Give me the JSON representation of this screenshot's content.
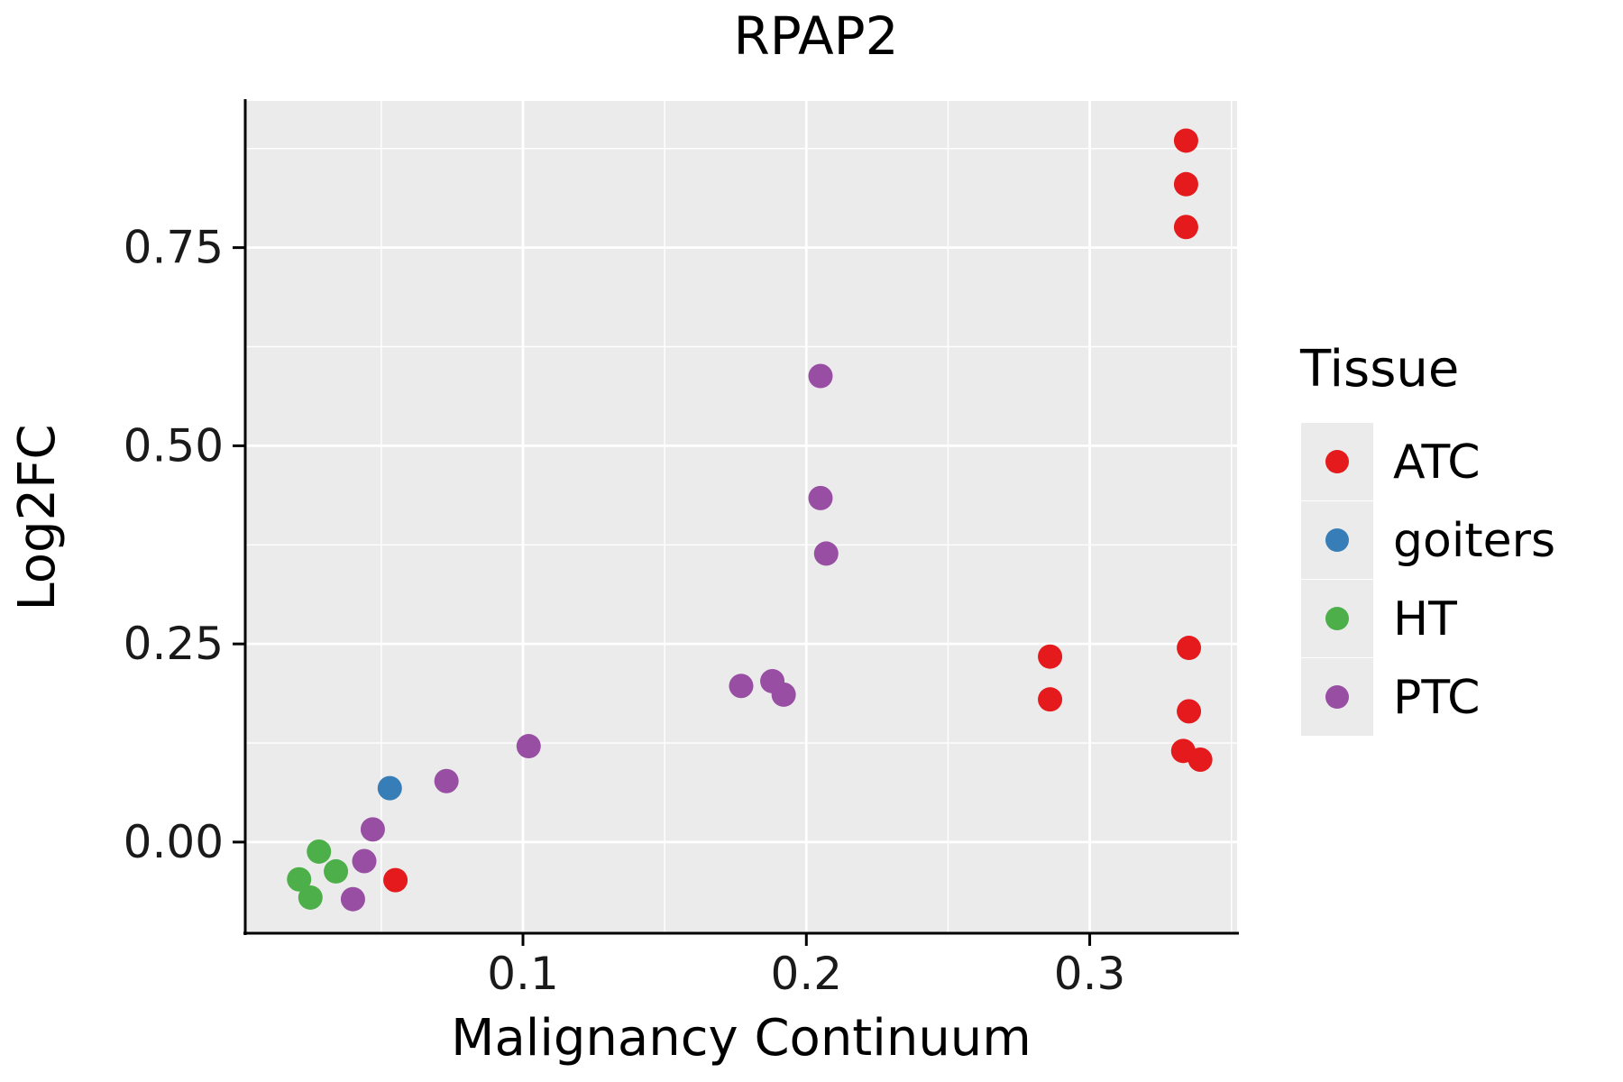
{
  "title": "RPAP2",
  "legend": {
    "title": "Tissue",
    "items": [
      "ATC",
      "goiters",
      "HT",
      "PTC"
    ]
  },
  "chart_data": {
    "type": "scatter",
    "title": "RPAP2",
    "xlabel": "Malignancy Continuum",
    "ylabel": "Log2FC",
    "xlim": [
      0.002,
      0.352
    ],
    "ylim": [
      -0.115,
      0.935
    ],
    "grid": true,
    "legend_position": "right",
    "panel_background": "#EBEBEB",
    "gridline_color": "#FFFFFF",
    "axis_color": "#000000",
    "x_ticks": {
      "values": [
        0.1,
        0.2,
        0.3
      ],
      "labels": [
        "0.1",
        "0.2",
        "0.3"
      ]
    },
    "y_ticks": {
      "values": [
        0.0,
        0.25,
        0.5,
        0.75
      ],
      "labels": [
        "0.00",
        "0.25",
        "0.50",
        "0.75"
      ]
    },
    "x_minor": [
      0.05,
      0.15,
      0.25,
      0.35
    ],
    "y_minor": [
      0.125,
      0.375,
      0.625,
      0.875
    ],
    "series": [
      {
        "name": "ATC",
        "color": "#E41A1C",
        "points": [
          [
            0.334,
            0.885
          ],
          [
            0.334,
            0.83
          ],
          [
            0.334,
            0.776
          ],
          [
            0.286,
            0.234
          ],
          [
            0.286,
            0.18
          ],
          [
            0.335,
            0.245
          ],
          [
            0.335,
            0.165
          ],
          [
            0.333,
            0.115
          ],
          [
            0.339,
            0.104
          ],
          [
            0.055,
            -0.048
          ]
        ]
      },
      {
        "name": "goiters",
        "color": "#377EB8",
        "points": [
          [
            0.053,
            0.068
          ]
        ]
      },
      {
        "name": "HT",
        "color": "#4DAF4A",
        "points": [
          [
            0.028,
            -0.012
          ],
          [
            0.021,
            -0.047
          ],
          [
            0.025,
            -0.07
          ],
          [
            0.034,
            -0.037
          ]
        ]
      },
      {
        "name": "PTC",
        "color": "#984EA3",
        "points": [
          [
            0.044,
            -0.024
          ],
          [
            0.047,
            0.016
          ],
          [
            0.04,
            -0.072
          ],
          [
            0.073,
            0.077
          ],
          [
            0.102,
            0.121
          ],
          [
            0.177,
            0.197
          ],
          [
            0.188,
            0.203
          ],
          [
            0.192,
            0.186
          ],
          [
            0.205,
            0.588
          ],
          [
            0.205,
            0.434
          ],
          [
            0.207,
            0.364
          ]
        ]
      }
    ]
  }
}
